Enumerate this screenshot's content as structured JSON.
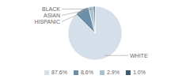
{
  "chart_data": {
    "type": "pie",
    "categories": [
      "WHITE",
      "HISPANIC",
      "ASIAN",
      "BLACK"
    ],
    "values": [
      87.6,
      8.6,
      2.9,
      1.0
    ],
    "value_labels": [
      "87.6%",
      "8.6%",
      "2.9%",
      "1.0%"
    ],
    "colors": [
      "#d4dfe9",
      "#6b8fa8",
      "#a8bfcf",
      "#3a5a72"
    ],
    "legend": "bottom"
  }
}
